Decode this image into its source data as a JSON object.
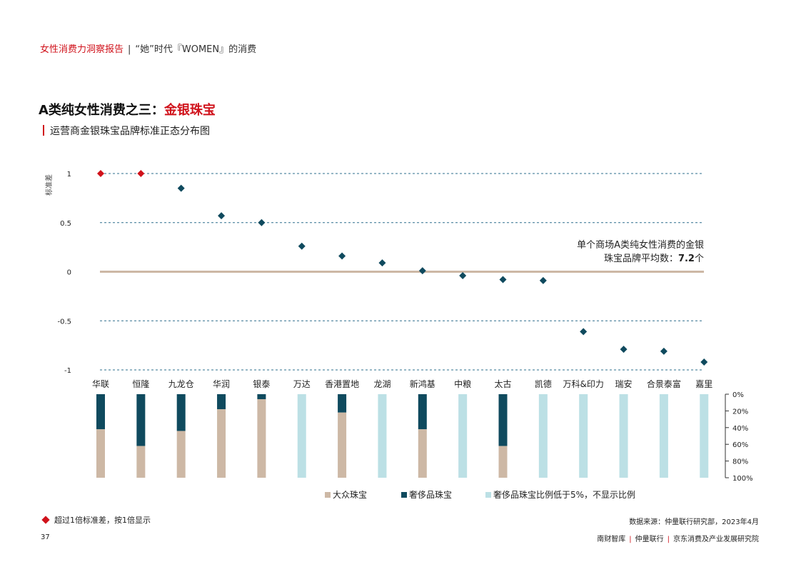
{
  "header": {
    "report_name": "女性消费力洞察报告",
    "divider": "|",
    "topic": "“她”时代『WOMEN』的消费"
  },
  "title": {
    "prefix": "A类纯女性消费之三：",
    "highlight": "金银珠宝"
  },
  "subtitle": "运营商金银珠宝品牌标准正态分布图",
  "annotation": {
    "line1": "单个商场A类纯女性消费的金银",
    "line2_prefix": "珠宝品牌平均数：",
    "line2_value": "7.2",
    "line2_suffix": "个"
  },
  "colors": {
    "accent_red": "#d0121b",
    "dark_teal": "#0f4a5e",
    "beige": "#cdb8a5",
    "light_blue": "#bce0e5",
    "zero_line": "#cdb8a5",
    "grid": "#2e6f8e"
  },
  "chart_data": [
    {
      "type": "scatter",
      "ylabel": "标准差",
      "ylim": [
        -1,
        1
      ],
      "y_ticks": [
        "1",
        "0.5",
        "0",
        "-0.5",
        "-1"
      ],
      "grid": "dashed horizontal",
      "categories": [
        "华联",
        "恒隆",
        "九龙仓",
        "华润",
        "银泰",
        "万达",
        "香港置地",
        "龙湖",
        "新鸿基",
        "中粮",
        "太古",
        "凯德",
        "万科&印力",
        "瑞安",
        "合景泰富",
        "嘉里"
      ],
      "values": [
        1,
        1,
        0.85,
        0.57,
        0.5,
        0.26,
        0.16,
        0.09,
        0.01,
        -0.04,
        -0.08,
        -0.09,
        -0.61,
        -0.79,
        -0.81,
        -0.92
      ],
      "capped": [
        true,
        true,
        false,
        false,
        false,
        false,
        false,
        false,
        false,
        false,
        false,
        false,
        false,
        false,
        false,
        false
      ]
    },
    {
      "type": "bar",
      "stacked": true,
      "y_ticks": [
        "0%",
        "20%",
        "40%",
        "60%",
        "80%",
        "100%"
      ],
      "categories": [
        "华联",
        "恒隆",
        "九龙仓",
        "华润",
        "银泰",
        "万达",
        "香港置地",
        "龙湖",
        "新鸿基",
        "中粮",
        "太古",
        "凯德",
        "万科&印力",
        "瑞安",
        "合景泰富",
        "嘉里"
      ],
      "series": [
        {
          "name": "奢侈品珠宝",
          "values": [
            42,
            62,
            44,
            18,
            6,
            null,
            22,
            null,
            42,
            null,
            62,
            null,
            null,
            null,
            null,
            null
          ]
        },
        {
          "name": "大众珠宝",
          "values": [
            58,
            38,
            56,
            82,
            94,
            null,
            78,
            null,
            58,
            null,
            38,
            null,
            null,
            null,
            null,
            null
          ]
        }
      ],
      "hidden_label": "奢侈品珠宝比例低于5%，不显示比例",
      "legend": [
        "大众珠宝",
        "奢侈品珠宝",
        "奢侈品珠宝比例低于5%，不显示比例"
      ]
    }
  ],
  "legend": {
    "mass": "大众珠宝",
    "luxury": "奢侈品珠宝",
    "hidden": "奢侈品珠宝比例低于5%，不显示比例"
  },
  "note": "超过1倍标准差，按1倍显示",
  "source": "数据来源：仲量联行研究部，2023年4月",
  "page_number": "37",
  "footer": [
    "南财智库",
    "仲量联行",
    "京东消费及产业发展研究院"
  ]
}
